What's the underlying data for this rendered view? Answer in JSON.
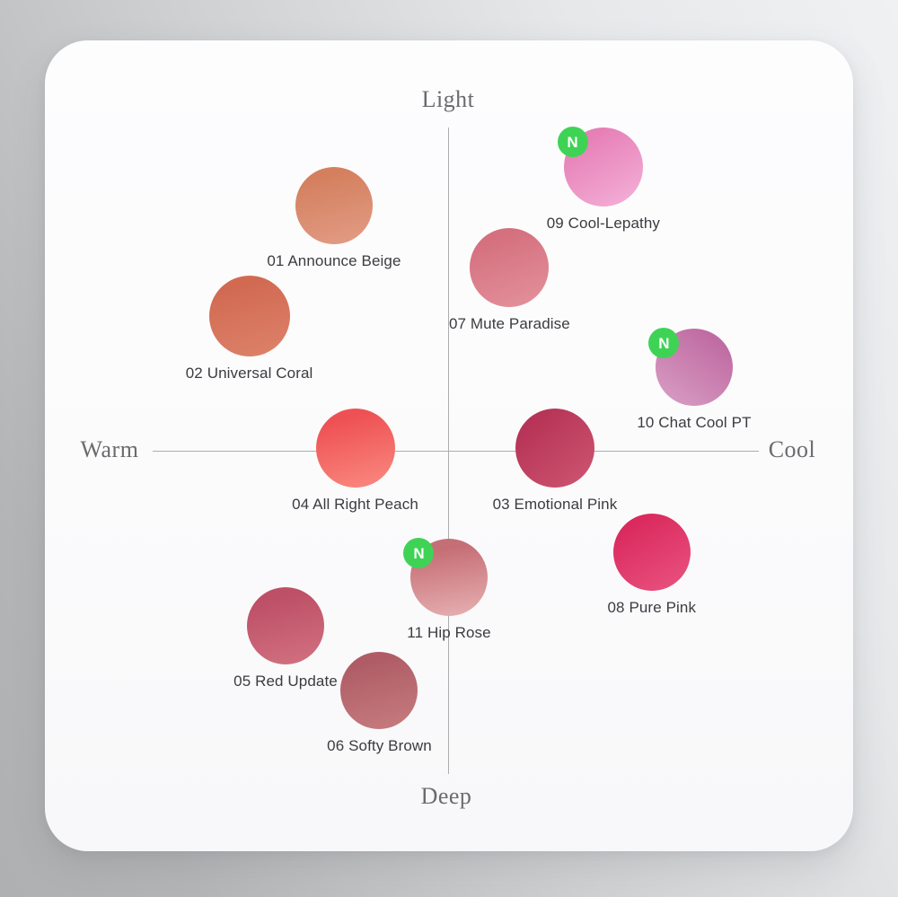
{
  "colors": {
    "background_light": "#F0F1F3",
    "background_dark": "#AFB0B1",
    "card": "#FBFBFC",
    "axis_line": "#ACADAF",
    "axis_label": "#6A6B6E",
    "shade_label_text": "#3B3C40"
  },
  "chart_data": {
    "type": "scatter",
    "title": "",
    "axis_labels": {
      "top": "Light",
      "bottom": "Deep",
      "left": "Warm",
      "right": "Cool"
    },
    "xlim": [
      -1,
      1
    ],
    "ylim": [
      -1,
      1
    ],
    "grid": false,
    "legend": "none",
    "new_badge": {
      "text": "N",
      "color": "#3FD355",
      "text_color": "#FFFFFF"
    },
    "points": [
      {
        "id": "01",
        "name": "Announce Beige",
        "x": -0.38,
        "y": 0.76,
        "r": 43,
        "color_top": "#D4805F",
        "color_bottom": "#E19A82",
        "deg": 165,
        "new": false
      },
      {
        "id": "02",
        "name": "Universal Coral",
        "x": -0.66,
        "y": 0.42,
        "r": 45,
        "color_top": "#D26A52",
        "color_bottom": "#DC8068",
        "deg": 165,
        "new": false
      },
      {
        "id": "03",
        "name": "Emotional Pink",
        "x": 0.35,
        "y": 0.01,
        "r": 44,
        "color_top": "#B63457",
        "color_bottom": "#CC536F",
        "deg": 140,
        "new": false
      },
      {
        "id": "04",
        "name": "All Right Peach",
        "x": -0.31,
        "y": 0.01,
        "r": 44,
        "color_top": "#EE5154",
        "color_bottom": "#F9857C",
        "deg": 165,
        "new": false
      },
      {
        "id": "05",
        "name": "Red Update",
        "x": -0.54,
        "y": -0.54,
        "r": 43,
        "color_top": "#BD4F66",
        "color_bottom": "#D06F7E",
        "deg": 165,
        "new": false
      },
      {
        "id": "06",
        "name": "Softy Brown",
        "x": -0.23,
        "y": -0.74,
        "r": 43,
        "color_top": "#AF5C66",
        "color_bottom": "#C47A7D",
        "deg": 165,
        "new": false
      },
      {
        "id": "07",
        "name": "Mute Paradise",
        "x": 0.2,
        "y": 0.57,
        "r": 44,
        "color_top": "#D5707F",
        "color_bottom": "#E28F99",
        "deg": 160,
        "new": false
      },
      {
        "id": "08",
        "name": "Pure Pink",
        "x": 0.67,
        "y": -0.31,
        "r": 43,
        "color_top": "#DA2A5E",
        "color_bottom": "#E8507E",
        "deg": 150,
        "new": false
      },
      {
        "id": "09",
        "name": "Cool-Lepathy",
        "x": 0.51,
        "y": 0.88,
        "r": 44,
        "color_top": "#E67FB6",
        "color_bottom": "#F3ADD6",
        "deg": 150,
        "new": true
      },
      {
        "id": "10",
        "name": "Chat Cool PT",
        "x": 0.81,
        "y": 0.26,
        "r": 43,
        "color_top": "#C06CA3",
        "color_bottom": "#D79BC2",
        "deg": 215,
        "new": true
      },
      {
        "id": "11",
        "name": "Hip Rose",
        "x": 0.0,
        "y": -0.39,
        "r": 43,
        "color_top": "#C66E76",
        "color_bottom": "#E3ABAC",
        "deg": 170,
        "new": true
      }
    ]
  }
}
